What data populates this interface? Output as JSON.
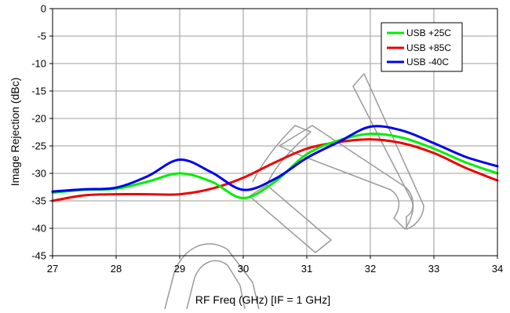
{
  "chart_data": {
    "type": "line",
    "title": "",
    "xlabel": "RF Freq (GHz) [IF = 1 GHz]",
    "ylabel": "Image Rejection (dBc)",
    "xlim": [
      27,
      34
    ],
    "ylim": [
      -45,
      0
    ],
    "xticks": [
      "27",
      "28",
      "29",
      "30",
      "31",
      "32",
      "33",
      "34"
    ],
    "yticks": [
      "0",
      "-5",
      "-10",
      "-15",
      "-20",
      "-25",
      "-30",
      "-35",
      "-40",
      "-45"
    ],
    "grid": true,
    "legend_position": "top-right",
    "series": [
      {
        "name": "USB +25C",
        "color": "#00ee00",
        "x": [
          27.0,
          27.5,
          28.0,
          28.5,
          29.0,
          29.5,
          30.0,
          30.5,
          31.0,
          31.5,
          32.0,
          32.5,
          33.0,
          33.5,
          34.0
        ],
        "values": [
          -33.5,
          -33.0,
          -32.8,
          -31.5,
          -30.0,
          -31.5,
          -34.5,
          -31.5,
          -26.5,
          -24.0,
          -22.8,
          -23.5,
          -25.5,
          -28.0,
          -30.0
        ]
      },
      {
        "name": "USB +85C",
        "color": "#ee0000",
        "x": [
          27.0,
          27.5,
          28.0,
          28.5,
          29.0,
          29.5,
          30.0,
          30.5,
          31.0,
          31.5,
          32.0,
          32.5,
          33.0,
          33.5,
          34.0
        ],
        "values": [
          -35.0,
          -34.0,
          -33.8,
          -33.8,
          -33.8,
          -32.8,
          -30.8,
          -28.0,
          -25.5,
          -24.3,
          -23.8,
          -24.5,
          -26.3,
          -29.0,
          -31.3
        ]
      },
      {
        "name": "USB -40C",
        "color": "#0000ee",
        "x": [
          27.0,
          27.5,
          28.0,
          28.5,
          29.0,
          29.5,
          30.0,
          30.5,
          31.0,
          31.5,
          32.0,
          32.5,
          33.0,
          33.5,
          34.0
        ],
        "values": [
          -33.3,
          -32.9,
          -32.6,
          -30.5,
          -27.5,
          -29.8,
          -33.0,
          -31.0,
          -27.2,
          -24.3,
          -21.5,
          -22.2,
          -24.5,
          -27.0,
          -28.7
        ]
      }
    ]
  }
}
